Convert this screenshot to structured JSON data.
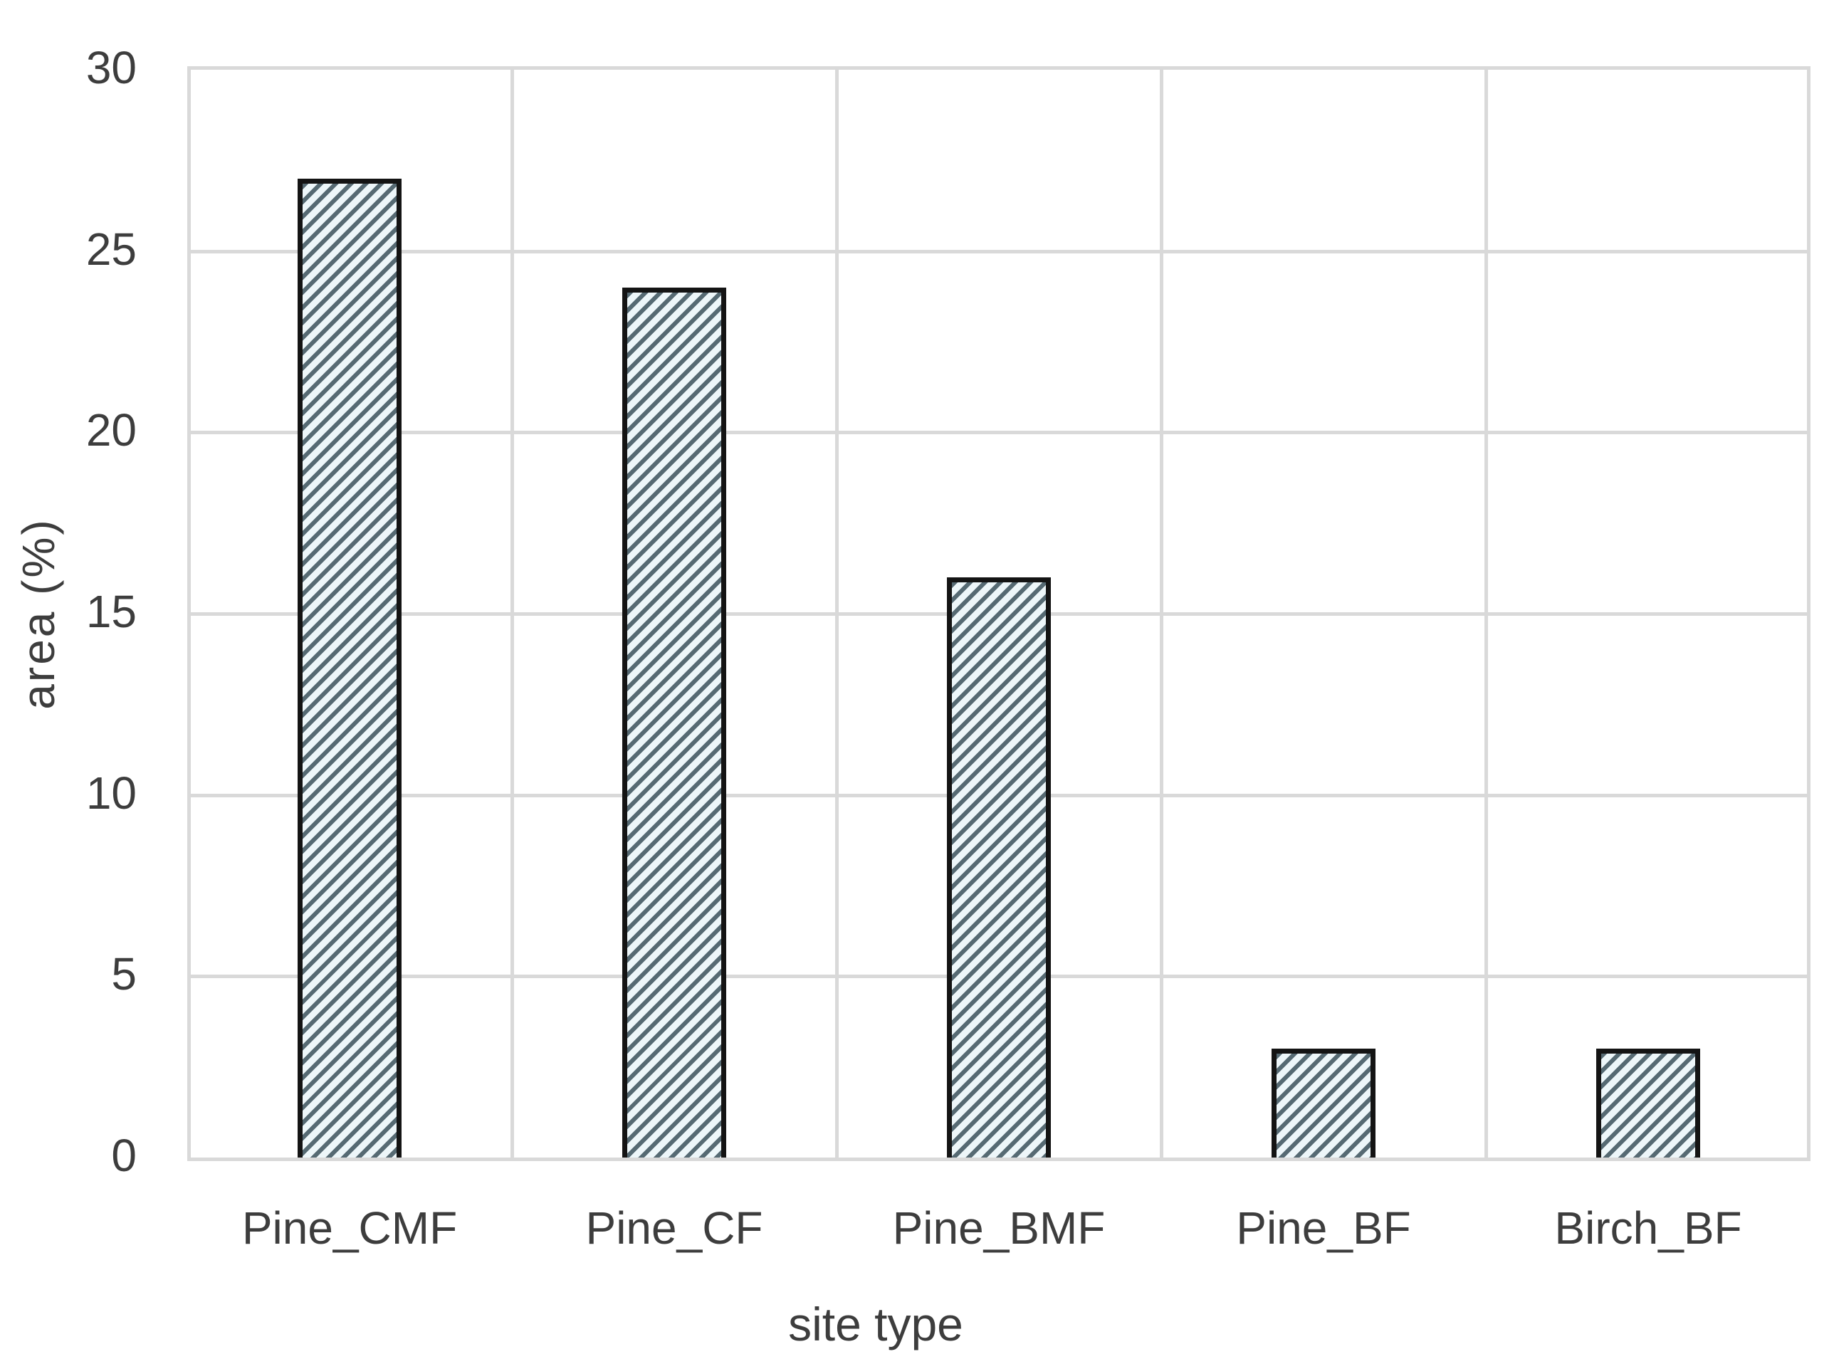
{
  "chart_data": {
    "type": "bar",
    "categories": [
      "Pine_CMF",
      "Pine_CF",
      "Pine_BMF",
      "Pine_BF",
      "Birch_BF"
    ],
    "values": [
      27,
      24,
      16,
      3,
      3
    ],
    "title": "",
    "xlabel": "site type",
    "ylabel": "area (%)",
    "ylim": [
      0,
      30
    ],
    "yticks": [
      0,
      5,
      10,
      15,
      20,
      25,
      30
    ],
    "grid": true,
    "legend_position": "none",
    "bar_hatch_pattern": "diagonal-forward",
    "colors": {
      "bar_fill": "#edf6f9",
      "bar_hatch": "#566a73",
      "bar_border": "#141414",
      "gridline": "#d9d9d9",
      "text": "#3d3d3d",
      "background": "#ffffff"
    }
  }
}
